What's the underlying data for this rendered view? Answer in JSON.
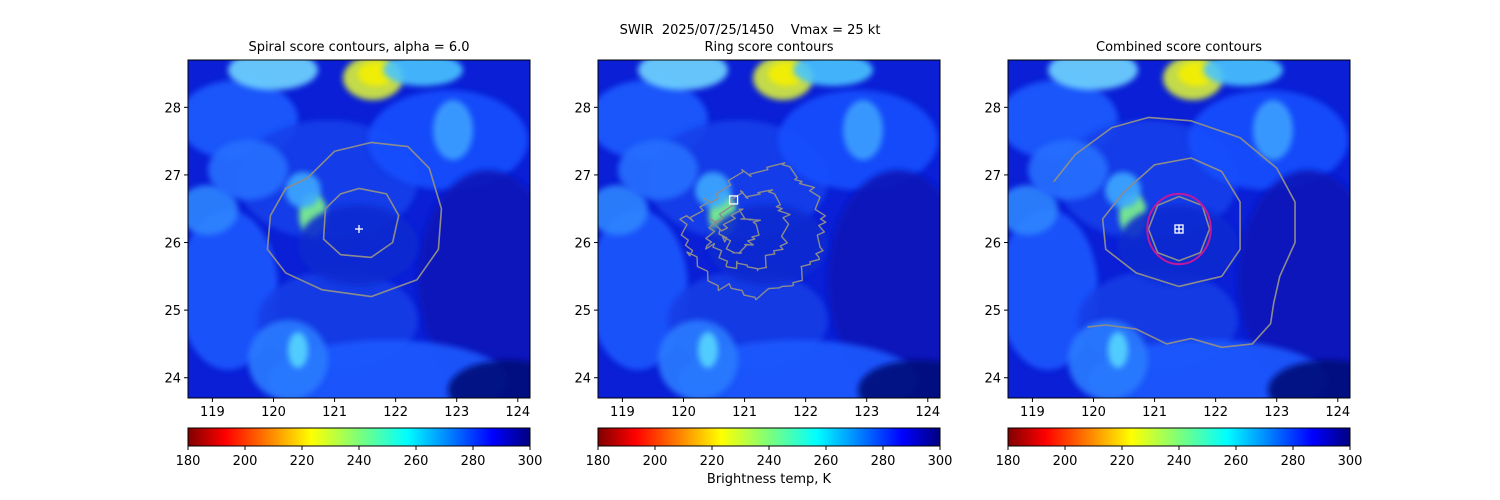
{
  "figure": {
    "suptitle_line1": "SWIR  2025/07/25/1450    Vmax = 25 kt",
    "colorbar_label": "Brightness temp, K"
  },
  "chart_data": [
    {
      "type": "heatmap",
      "title": "Spiral score contours, alpha =  6.0",
      "xlabel": "",
      "ylabel": "",
      "xlim": [
        118.6,
        124.2
      ],
      "ylim": [
        23.7,
        28.7
      ],
      "xticks": [
        119,
        120,
        121,
        122,
        123,
        124
      ],
      "yticks": [
        24,
        25,
        26,
        27,
        28
      ],
      "colorbar": {
        "colormap": "jet_r",
        "range": [
          180,
          300
        ],
        "ticks": [
          180,
          200,
          220,
          240,
          260,
          280,
          300
        ]
      },
      "center_marker": {
        "symbol": "+",
        "lon": 121.4,
        "lat": 26.2,
        "color": "#ffffff"
      },
      "contours": [
        {
          "color": "#8c8c8c",
          "points": [
            [
              121.4,
              26.8
            ],
            [
              121.85,
              26.72
            ],
            [
              122.05,
              26.4
            ],
            [
              121.95,
              26.0
            ],
            [
              121.6,
              25.78
            ],
            [
              121.1,
              25.82
            ],
            [
              120.82,
              26.05
            ],
            [
              120.85,
              26.5
            ],
            [
              121.1,
              26.72
            ],
            [
              121.4,
              26.8
            ]
          ]
        },
        {
          "color": "#8c8c8c",
          "points": [
            [
              120.55,
              26.95
            ],
            [
              121.0,
              27.35
            ],
            [
              121.6,
              27.48
            ],
            [
              122.2,
              27.42
            ],
            [
              122.55,
              27.1
            ],
            [
              122.75,
              26.5
            ],
            [
              122.7,
              25.9
            ],
            [
              122.35,
              25.45
            ],
            [
              121.6,
              25.2
            ],
            [
              120.8,
              25.3
            ],
            [
              120.2,
              25.55
            ],
            [
              119.9,
              25.9
            ],
            [
              119.95,
              26.4
            ],
            [
              120.2,
              26.8
            ],
            [
              120.55,
              26.95
            ]
          ]
        }
      ]
    },
    {
      "type": "heatmap",
      "title": "Ring score contours",
      "xlabel": "",
      "ylabel": "",
      "xlim": [
        118.6,
        124.2
      ],
      "ylim": [
        23.7,
        28.7
      ],
      "xticks": [
        119,
        120,
        121,
        122,
        123,
        124
      ],
      "yticks": [
        24,
        25,
        26,
        27,
        28
      ],
      "colorbar": {
        "colormap": "jet_r",
        "range": [
          180,
          300
        ],
        "ticks": [
          180,
          200,
          220,
          240,
          260,
          280,
          300
        ]
      },
      "center_marker": {
        "symbol": "square",
        "lon": 120.82,
        "lat": 26.63,
        "color": "#ffffff"
      },
      "contours": [
        {
          "color": "#8c8c8c",
          "noisy": true,
          "points": [
            [
              120.4,
              26.6
            ],
            [
              120.9,
              27.0
            ],
            [
              121.6,
              27.15
            ],
            [
              122.1,
              26.8
            ],
            [
              122.3,
              26.3
            ],
            [
              122.2,
              25.8
            ],
            [
              121.8,
              25.4
            ],
            [
              121.2,
              25.2
            ],
            [
              120.6,
              25.35
            ],
            [
              120.1,
              25.8
            ],
            [
              120.0,
              26.3
            ],
            [
              120.4,
              26.6
            ]
          ]
        },
        {
          "color": "#8c8c8c",
          "noisy": true,
          "points": [
            [
              120.5,
              26.3
            ],
            [
              120.9,
              26.7
            ],
            [
              121.4,
              26.75
            ],
            [
              121.7,
              26.4
            ],
            [
              121.6,
              25.9
            ],
            [
              121.2,
              25.6
            ],
            [
              120.7,
              25.7
            ],
            [
              120.4,
              26.0
            ],
            [
              120.5,
              26.3
            ]
          ]
        },
        {
          "color": "#8c8c8c",
          "noisy": true,
          "points": [
            [
              120.6,
              26.2
            ],
            [
              120.9,
              26.45
            ],
            [
              121.2,
              26.3
            ],
            [
              121.1,
              25.95
            ],
            [
              120.8,
              25.85
            ],
            [
              120.6,
              26.2
            ]
          ]
        }
      ]
    },
    {
      "type": "heatmap",
      "title": "Combined score contours",
      "xlabel": "",
      "ylabel": "",
      "xlim": [
        118.6,
        124.2
      ],
      "ylim": [
        23.7,
        28.7
      ],
      "xticks": [
        119,
        120,
        121,
        122,
        123,
        124
      ],
      "yticks": [
        24,
        25,
        26,
        27,
        28
      ],
      "colorbar": {
        "colormap": "jet_r",
        "range": [
          180,
          300
        ],
        "ticks": [
          180,
          200,
          220,
          240,
          260,
          280,
          300
        ]
      },
      "center_marker": {
        "symbol": "square-plus",
        "lon": 121.4,
        "lat": 26.2,
        "color": "#ffffff"
      },
      "radius_circle": {
        "lon": 121.4,
        "lat": 26.2,
        "radius_deg": 0.52,
        "color": "#c1189c"
      },
      "contours": [
        {
          "color": "#8c8c8c",
          "points": [
            [
              121.4,
              26.68
            ],
            [
              121.78,
              26.55
            ],
            [
              121.9,
              26.2
            ],
            [
              121.75,
              25.85
            ],
            [
              121.4,
              25.73
            ],
            [
              121.05,
              25.85
            ],
            [
              120.9,
              26.2
            ],
            [
              121.05,
              26.55
            ],
            [
              121.4,
              26.68
            ]
          ]
        },
        {
          "color": "#8c8c8c",
          "points": [
            [
              120.5,
              26.75
            ],
            [
              121.0,
              27.15
            ],
            [
              121.6,
              27.25
            ],
            [
              122.1,
              27.05
            ],
            [
              122.4,
              26.6
            ],
            [
              122.4,
              25.9
            ],
            [
              122.1,
              25.5
            ],
            [
              121.4,
              25.35
            ],
            [
              120.7,
              25.55
            ],
            [
              120.2,
              25.9
            ],
            [
              120.15,
              26.35
            ],
            [
              120.5,
              26.75
            ]
          ]
        },
        {
          "color": "#8c8c8c",
          "points": [
            [
              119.35,
              26.9
            ],
            [
              119.7,
              27.3
            ],
            [
              120.3,
              27.7
            ],
            [
              120.9,
              27.85
            ],
            [
              121.6,
              27.8
            ],
            [
              122.4,
              27.55
            ],
            [
              123.0,
              27.1
            ],
            [
              123.3,
              26.6
            ],
            [
              123.3,
              26.0
            ],
            [
              123.05,
              25.5
            ],
            [
              122.95,
              25.1
            ],
            [
              122.9,
              24.8
            ],
            [
              122.6,
              24.5
            ],
            [
              122.1,
              24.45
            ],
            [
              121.6,
              24.58
            ],
            [
              121.2,
              24.5
            ],
            [
              120.7,
              24.72
            ],
            [
              120.2,
              24.78
            ],
            [
              119.9,
              24.75
            ]
          ]
        }
      ]
    }
  ]
}
